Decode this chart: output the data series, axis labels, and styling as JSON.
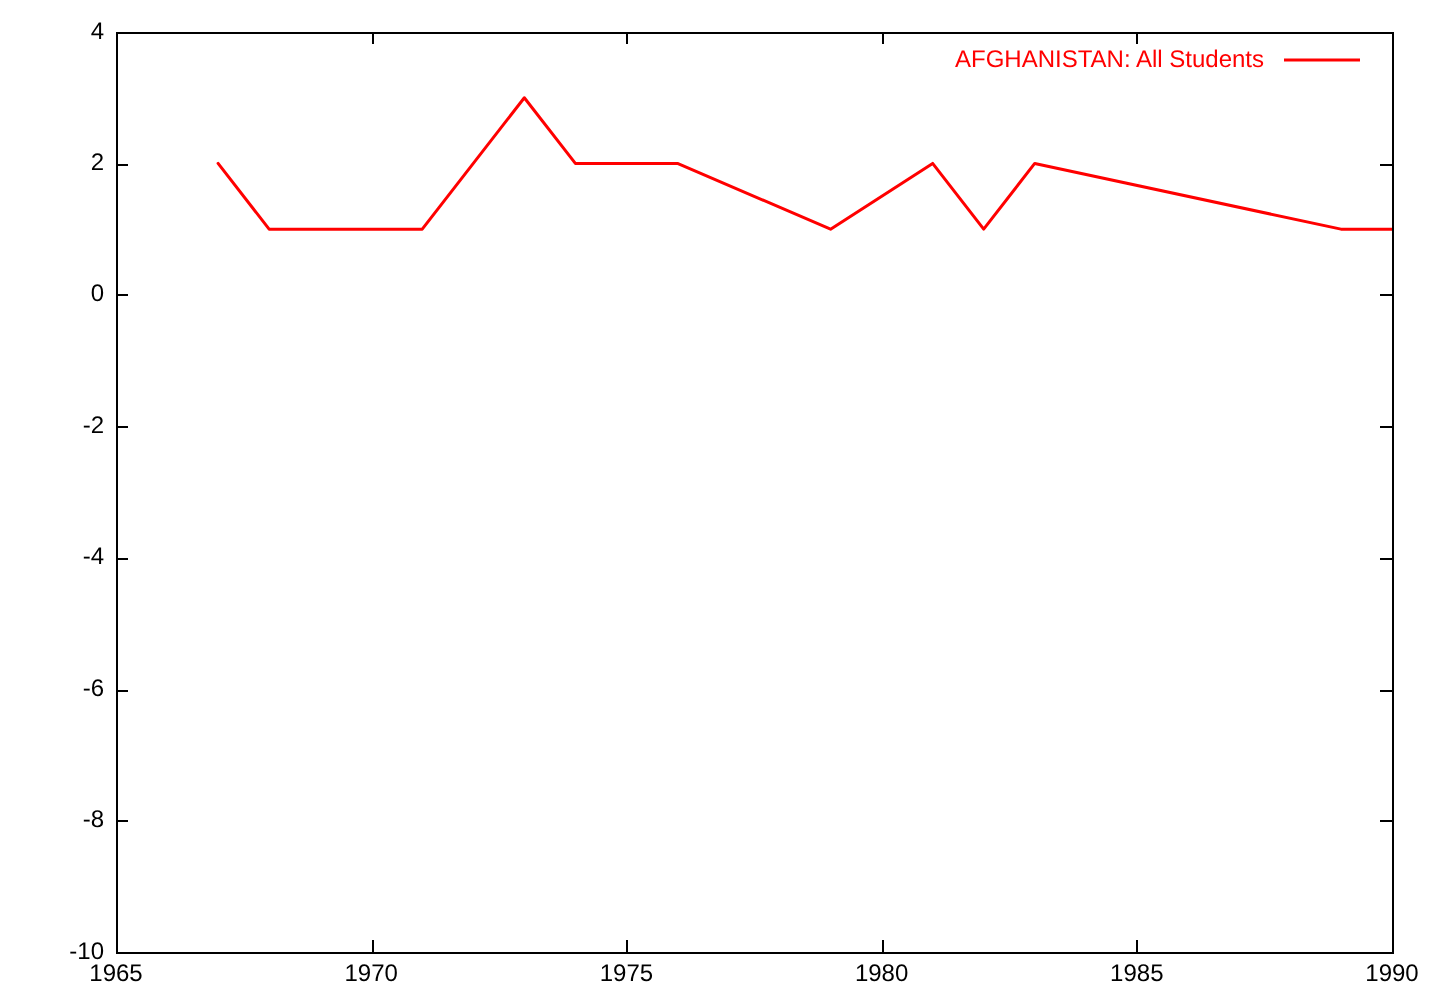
{
  "chart_data": {
    "type": "line",
    "x": [
      1967,
      1968,
      1971,
      1973,
      1974,
      1976,
      1979,
      1981,
      1982,
      1983,
      1989,
      1990
    ],
    "series": [
      {
        "name": "AFGHANISTAN: All Students",
        "color": "#ff0000",
        "values": [
          2,
          1,
          1,
          3,
          2,
          2,
          1,
          2,
          1,
          2,
          1,
          1
        ]
      }
    ],
    "xlim": [
      1965,
      1990
    ],
    "xticks": [
      1965,
      1970,
      1975,
      1980,
      1985,
      1990
    ],
    "ylim": [
      -10,
      4
    ],
    "yticks": [
      -10,
      -8,
      -6,
      -4,
      -2,
      0,
      2,
      4
    ],
    "grid": false,
    "legend": "top right",
    "marker": "none",
    "line_style": "solid"
  }
}
